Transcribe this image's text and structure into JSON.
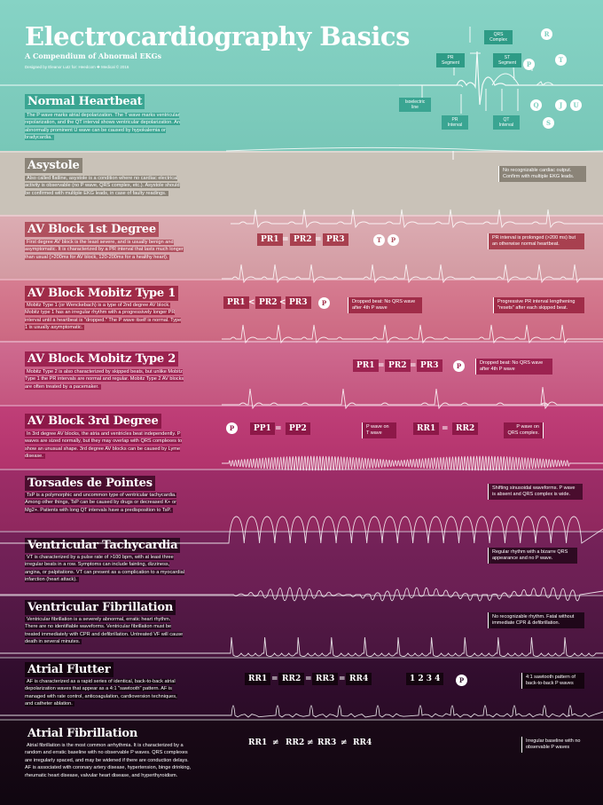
{
  "header": {
    "title": "Electrocardiography Basics",
    "subtitle": "A Compendium of Abnormal EKGs",
    "credit": "Designed by Eleanor Lutz for: Heedcom ✚ Medical © 2016"
  },
  "anatomy_labels": {
    "qrs_complex": "QRS Complex",
    "pr_segment": "PR Segment",
    "st_segment": "ST Segment",
    "isoelectric_line": "Isoelectric line",
    "pr_interval": "PR Interval",
    "qt_interval": "QT Interval",
    "waves": [
      "P",
      "Q",
      "R",
      "S",
      "T",
      "J",
      "U"
    ]
  },
  "colors": {
    "normal": "#7fcfc0",
    "asystole": "#c8c1b6",
    "av1": "#d9a3aa",
    "mobitz1": "#cf6f85",
    "mobitz2": "#c85d86",
    "av3": "#b8336d",
    "torsades": "#962a62",
    "vtach": "#6e2055",
    "vfib": "#4f1642",
    "aflutter": "#2e0c2a",
    "afib": "#150813"
  },
  "sections": [
    {
      "title": "Normal Heartbeat",
      "description": "The P wave marks atrial depolarization. The T wave marks ventricular repolarization, and the QT interval shows ventricular depolarization. An abnormally prominent U wave can be caused by hypokalemia or bradycardia.",
      "note": ""
    },
    {
      "title": "Asystole",
      "description": "Also called flatline, asystole is a condition where no cardiac electrical activity is observable (no P wave, QRS complex, etc.). Asystole should be confirmed with multiple EKG leads, in case of faulty readings.",
      "note": "No recognizable cardiac output. Confirm with multiple EKG leads."
    },
    {
      "title": "AV Block 1st Degree",
      "description": "First degree AV block is the least severe, and is usually benign and asymptomatic. It is characterized by a PR interval that lasts much longer than usual (>200ms for AV block, 120-200ms for a healthy heart).",
      "note": "PR interval is prolonged (>200 ms) but an otherwise normal heartbeat.",
      "equation": [
        "PR1",
        "=",
        "PR2",
        "=",
        "PR3"
      ],
      "markers": [
        "T",
        "P"
      ]
    },
    {
      "title": "AV Block Mobitz Type 1",
      "description": "Mobitz Type 1 (or Wenckebach) is a type of 2nd degree AV block. Mobitz type 1 has an irregular rhythm with a progressively longer PR interval until a heartbeat is \"dropped.\" The P wave itself is normal. Type 1 is usually asymptomatic.",
      "equation": [
        "PR1",
        "<",
        "PR2",
        "<",
        "PR3"
      ],
      "markers": [
        "P"
      ],
      "note": "Dropped beat: No QRS wave after 4th P wave",
      "note2": "Progressive PR interval lengthening \"resets\" after each skipped beat."
    },
    {
      "title": "AV Block Mobitz Type 2",
      "description": "Mobitz Type 2 is also characterized by skipped beats, but unlike Mobitz Type 1 the PR intervals are normal and regular. Mobitz Type 2 AV blocks are often treated by a pacemaker.",
      "equation": [
        "PR1",
        "=",
        "PR2",
        "=",
        "PR3"
      ],
      "markers": [
        "P"
      ],
      "note": "Dropped beat: No QRS wave after 4th P wave"
    },
    {
      "title": "AV Block 3rd Degree",
      "description": "In 3rd degree AV blocks, the atria and ventricles beat independently. P waves are sized normally, but they may overlap with QRS complexes to show an unusual shape. 3rd degree AV blocks can be caused by Lyme disease.",
      "equation": [
        "PP1",
        "=",
        "PP2"
      ],
      "equation2": [
        "RR1",
        "=",
        "RR2"
      ],
      "markers": [
        "P"
      ],
      "note": "P wave on T wave",
      "note2": "P wave on QRS complex."
    },
    {
      "title": "Torsades de Pointes",
      "description": "TsP is a polymorphic and uncommon type of ventricular tachycardia. Among other things, TsP can be caused by drugs or decreased K+ or Mg2+. Patients with long QT intervals have a predisposition to TsP.",
      "note": "Shifting sinusoidal waveforms. P wave is absent and QRS complex is wide."
    },
    {
      "title": "Ventricular Tachycardia",
      "description": "VT is characterized by a pulse rate of >100 bpm, with at least three irregular beats in a row. Symptoms can include fainting, dizziness, angina, or palpitations. VT can present as a complication to a myocardial infarction (heart attack).",
      "note": "Regular rhythm with a bizarre QRS appearance and no P wave."
    },
    {
      "title": "Ventricular Fibrillation",
      "description": "Ventricular fibrillation is a severely abnormal, erratic heart rhythm. There are no identifiable waveforms. Ventricular fibrillation must be treated immediately with CPR and defibrillation. Untreated VF will cause death in several minutes.",
      "note": "No recognizable rhythm. Fatal without immediate CPR & defibrillation."
    },
    {
      "title": "Atrial Flutter",
      "description": "AF is characterized as a rapid series of identical, back-to-back atrial depolarization waves that appear as a 4:1 \"sawtooth\" pattern. AF is managed with rate control, anticoagulation, cardioversion techniques, and catheter ablation.",
      "equation": [
        "RR1",
        "=",
        "RR2",
        "=",
        "RR3",
        "=",
        "RR4"
      ],
      "counts": "1 2 3 4",
      "markers": [
        "P"
      ],
      "note": "4:1 sawtooth pattern of back-to-back P waves"
    },
    {
      "title": "Atrial Fibrillation",
      "description": "Atrial fibrillation is the most common arrhythmia. It is characterized by a random and erratic baseline with no observable P waves. QRS complexes are irregularly spaced, and may be widened if there are conduction delays. AF is associated with coronary artery disease, hypertension, binge drinking, rheumatic heart disease, valvular heart disease, and hyperthyroidism.",
      "equation": [
        "RR1",
        "≠",
        "RR2",
        "≠",
        "RR3",
        "≠",
        "RR4"
      ],
      "note": "Irregular baseline with no observable P waves"
    }
  ]
}
